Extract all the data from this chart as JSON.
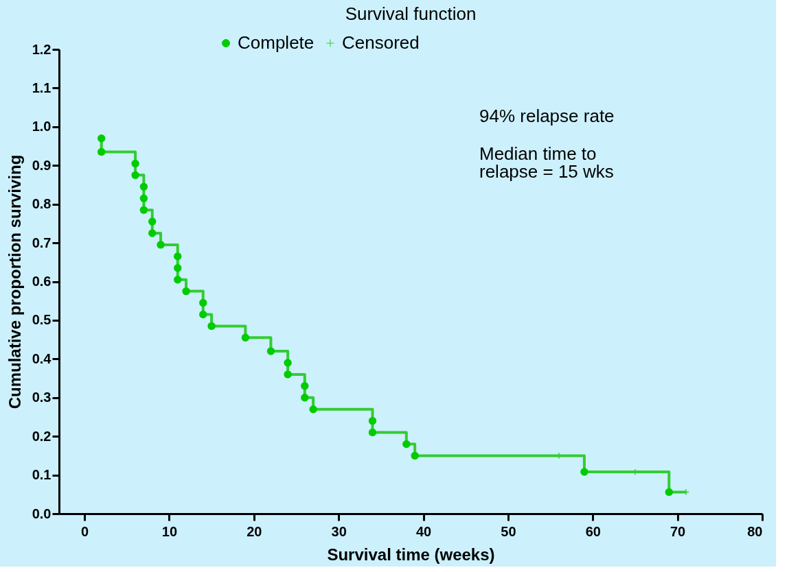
{
  "chart_data": {
    "type": "step",
    "title": "Survival function",
    "xlabel": "Survival time (weeks)",
    "ylabel": "Cumulative proportion surviving",
    "xlim": [
      -3,
      80
    ],
    "xticks": [
      0,
      10,
      20,
      30,
      40,
      50,
      60,
      70,
      80
    ],
    "ylim": [
      0,
      1.2
    ],
    "yticks": [
      {
        "value": 0,
        "label": "0.0"
      },
      0.1,
      0.2,
      0.3,
      0.4,
      0.5,
      0.6,
      0.7,
      0.8,
      0.9,
      {
        "value": 1,
        "label": "1.0"
      },
      1.1,
      1.2
    ],
    "grid": false,
    "legend": "top",
    "series": [
      {
        "color": "#33cc33",
        "marker": "none",
        "x": [
          2,
          2,
          6,
          7,
          8,
          9,
          11,
          12,
          14,
          15,
          19,
          22,
          24,
          26,
          27,
          34,
          38,
          39,
          59,
          69,
          71
        ],
        "values": [
          0.97,
          0.935,
          0.875,
          0.785,
          0.725,
          0.695,
          0.605,
          0.575,
          0.515,
          0.485,
          0.455,
          0.42,
          0.36,
          0.3,
          0.27,
          0.21,
          0.18,
          0.15,
          0.108,
          0.056,
          0.056
        ]
      },
      {
        "type": "scatter",
        "name": "Complete",
        "color": "#00cc00",
        "marker": "circle",
        "x": [
          2,
          2,
          6,
          6,
          7,
          7,
          7,
          8,
          8,
          9,
          11,
          11,
          11,
          12,
          14,
          14,
          15,
          19,
          22,
          24,
          24,
          26,
          26,
          27,
          34,
          34,
          38,
          39,
          59,
          69
        ],
        "values": [
          0.97,
          0.935,
          0.905,
          0.875,
          0.845,
          0.815,
          0.785,
          0.755,
          0.725,
          0.695,
          0.665,
          0.635,
          0.605,
          0.575,
          0.545,
          0.515,
          0.485,
          0.455,
          0.42,
          0.39,
          0.36,
          0.33,
          0.3,
          0.27,
          0.24,
          0.21,
          0.18,
          0.15,
          0.108,
          0.056
        ]
      },
      {
        "type": "scatter",
        "name": "Censored",
        "color": "#33cc33",
        "marker": "cross",
        "x": [
          56,
          65,
          71
        ],
        "values": [
          0.15,
          0.108,
          0.056
        ]
      }
    ],
    "annotations": [
      "94% relapse rate",
      "Median time to\nrelapse = 15 wks"
    ]
  }
}
